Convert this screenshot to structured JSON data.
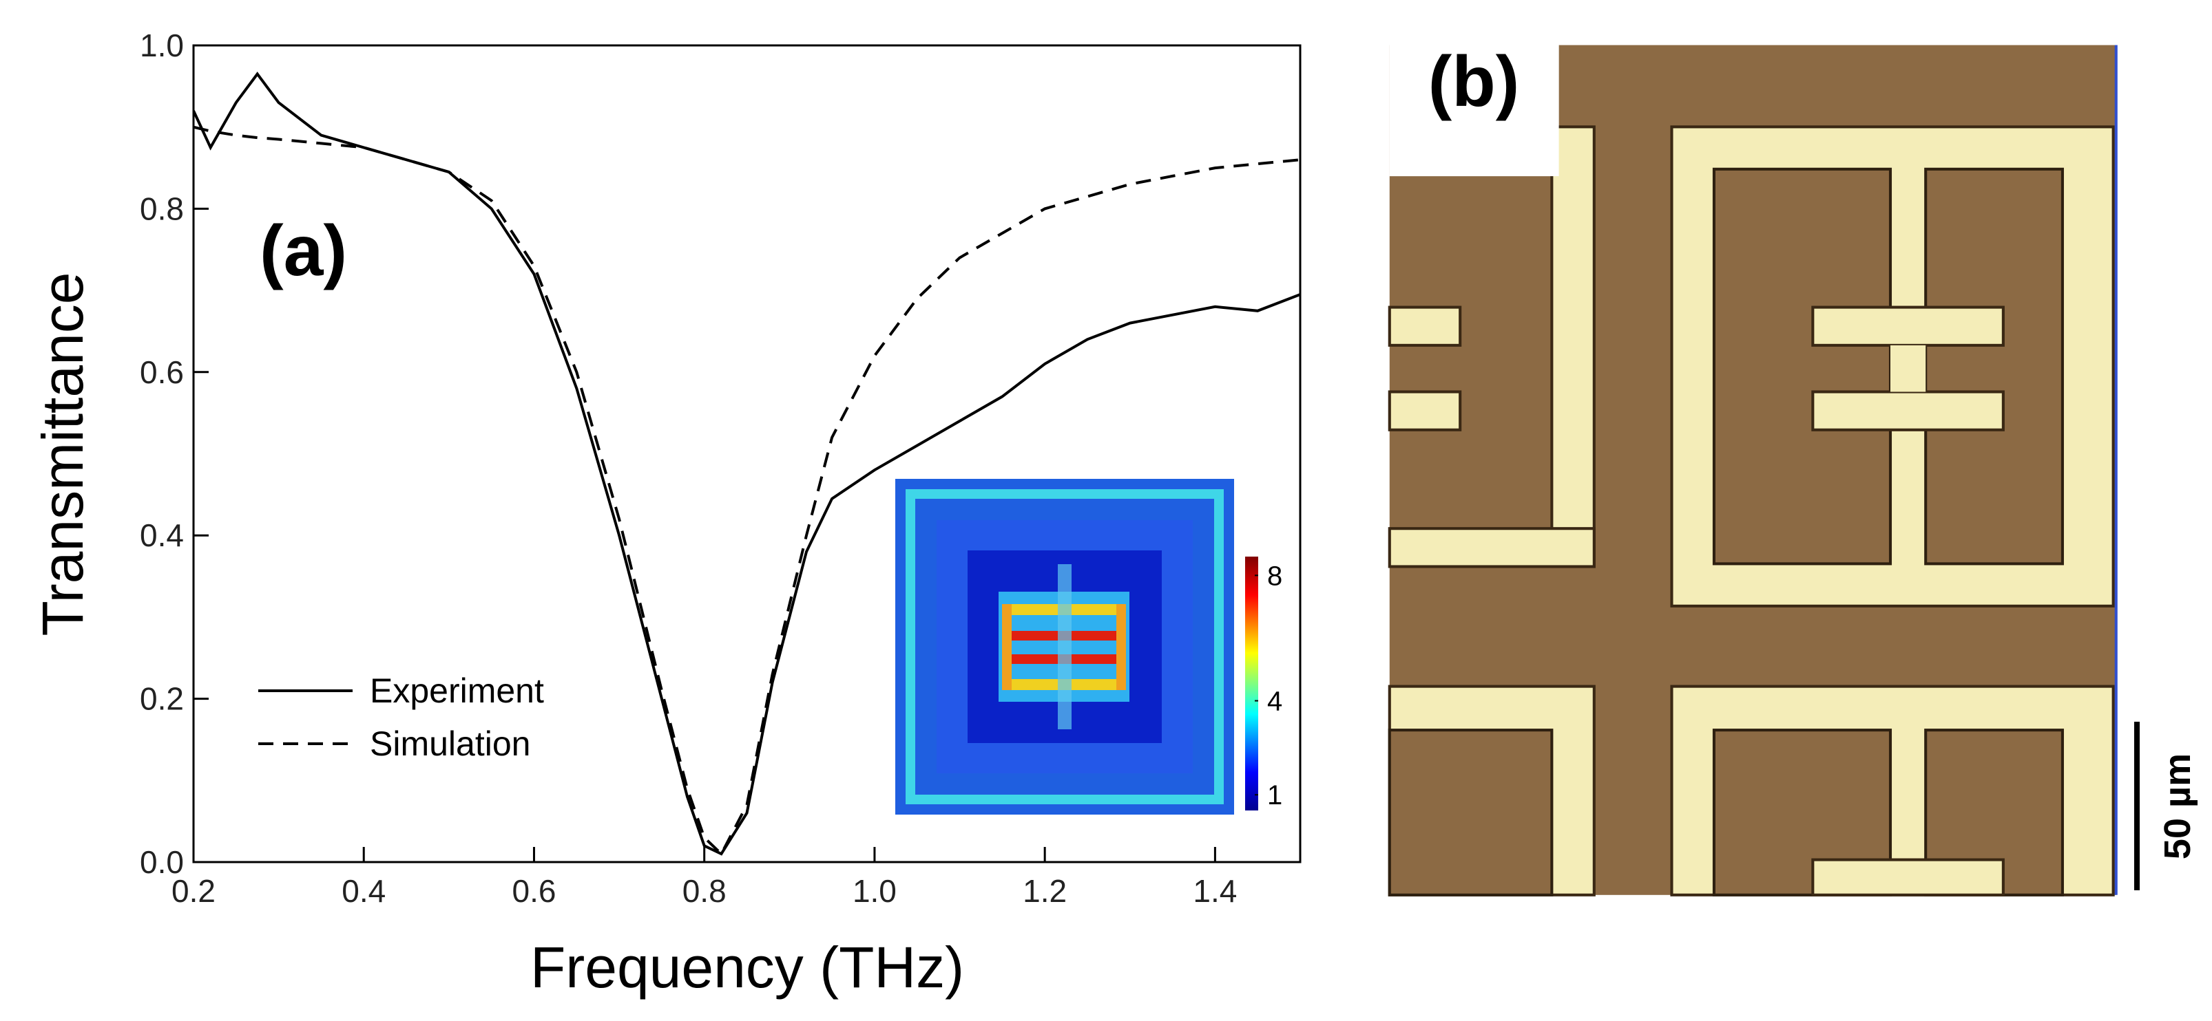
{
  "chart_data": {
    "type": "line",
    "xlabel": "Frequency (THz)",
    "ylabel": "Transmittance",
    "annotation": "(a)",
    "x": [
      0.2,
      0.22,
      0.25,
      0.275,
      0.3,
      0.35,
      0.4,
      0.45,
      0.5,
      0.55,
      0.6,
      0.65,
      0.7,
      0.75,
      0.78,
      0.8,
      0.82,
      0.85,
      0.88,
      0.92,
      0.95,
      1.0,
      1.05,
      1.1,
      1.15,
      1.2,
      1.25,
      1.3,
      1.35,
      1.4,
      1.45,
      1.5
    ],
    "series": [
      {
        "name": "Experiment",
        "color": "#000000",
        "style": "solid",
        "values": [
          0.92,
          0.875,
          0.93,
          0.965,
          0.93,
          0.89,
          0.875,
          0.86,
          0.845,
          0.8,
          0.72,
          0.58,
          0.4,
          0.2,
          0.08,
          0.02,
          0.01,
          0.06,
          0.22,
          0.38,
          0.445,
          0.48,
          0.51,
          0.54,
          0.57,
          0.61,
          0.64,
          0.66,
          0.67,
          0.68,
          0.675,
          0.695
        ]
      },
      {
        "name": "Simulation",
        "color": "#000000",
        "style": "dashed",
        "values": [
          0.9,
          0.895,
          0.89,
          0.887,
          0.885,
          0.88,
          0.875,
          0.86,
          0.845,
          0.81,
          0.73,
          0.6,
          0.42,
          0.21,
          0.09,
          0.03,
          0.01,
          0.07,
          0.23,
          0.4,
          0.52,
          0.62,
          0.69,
          0.74,
          0.77,
          0.8,
          0.815,
          0.83,
          0.84,
          0.85,
          0.855,
          0.86
        ]
      }
    ],
    "xlim": [
      0.2,
      1.5
    ],
    "ylim": [
      0.0,
      1.0
    ],
    "xticks": [
      0.2,
      0.4,
      0.6,
      0.8,
      {
        "value": 1.0,
        "label": "1.0"
      },
      1.2,
      1.4
    ],
    "yticks": [
      {
        "value": 0.0,
        "label": "0.0"
      },
      0.2,
      0.4,
      0.6,
      0.8,
      {
        "value": 1.0,
        "label": "1.0"
      }
    ],
    "legend": "lower-left",
    "inset": {
      "colorbar_lim": [
        0.5,
        8.6
      ],
      "colorbar_ticks": [
        1,
        4,
        8
      ]
    }
  },
  "micrograph": {
    "label": "(b)",
    "scale_bar": "50 µm"
  }
}
